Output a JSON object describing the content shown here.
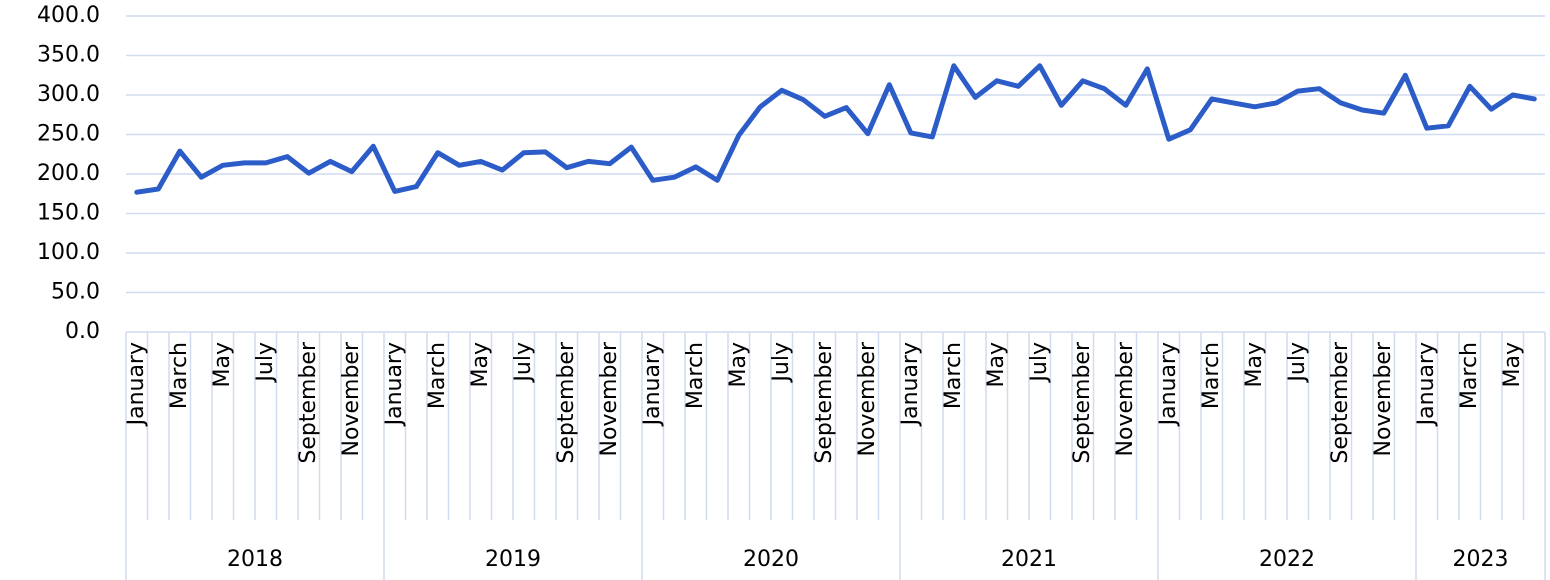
{
  "chart_data": {
    "type": "line",
    "categories": [
      "January",
      null,
      "March",
      null,
      "May",
      null,
      "July",
      null,
      "September",
      null,
      "November",
      null,
      "January",
      null,
      "March",
      null,
      "May",
      null,
      "July",
      null,
      "September",
      null,
      "November",
      null,
      "January",
      null,
      "March",
      null,
      "May",
      null,
      "July",
      null,
      "September",
      null,
      "November",
      null,
      "January",
      null,
      "March",
      null,
      "May",
      null,
      "July",
      null,
      "September",
      null,
      "November",
      null,
      "January",
      null,
      "March",
      null,
      "May",
      null,
      "July",
      null,
      "September",
      null,
      "November",
      null,
      "January",
      null,
      "March",
      null,
      "May",
      null
    ],
    "x_groups": [
      "2018",
      "2019",
      "2020",
      "2021",
      "2022",
      "2023"
    ],
    "values": [
      177,
      181,
      229,
      196,
      211,
      214,
      214,
      222,
      201,
      216,
      203,
      235,
      178,
      184,
      227,
      211,
      216,
      205,
      227,
      228,
      208,
      216,
      213,
      234,
      192,
      196,
      209,
      192,
      249,
      285,
      306,
      294,
      273,
      284,
      251,
      313,
      252,
      247,
      337,
      297,
      318,
      311,
      337,
      287,
      318,
      308,
      287,
      333,
      244,
      256,
      295,
      290,
      285,
      290,
      305,
      308,
      290,
      281,
      277,
      325,
      258,
      261,
      311,
      282,
      300,
      295
    ],
    "color": "#2b5cc8",
    "ylim": [
      0,
      400
    ],
    "yticks": [
      {
        "value": 0,
        "label": "0.0"
      },
      {
        "value": 50,
        "label": "50.0"
      },
      {
        "value": 100,
        "label": "100.0"
      },
      {
        "value": 150,
        "label": "150.0"
      },
      {
        "value": 200,
        "label": "200.0"
      },
      {
        "value": 250,
        "label": "250.0"
      },
      {
        "value": 300,
        "label": "300.0"
      },
      {
        "value": 350,
        "label": "350.0"
      },
      {
        "value": 400,
        "label": "400.0"
      }
    ],
    "grid": true
  }
}
